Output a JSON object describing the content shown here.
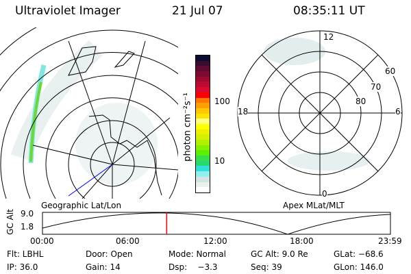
{
  "header": {
    "instrument": "Ultraviolet Imager",
    "date": "21 Jul 07",
    "time": "08:35:11 UT"
  },
  "left_map": {
    "label": "Geographic Lat/Lon"
  },
  "colorbar": {
    "unit_label": "photon cm⁻²s⁻¹",
    "tick_labels": [
      "100",
      "10"
    ],
    "colors": [
      "#0c0c32",
      "#3a0c30",
      "#5e0a32",
      "#7e0a32",
      "#9c0a32",
      "#be0a32",
      "#dc0a30",
      "#ff0000",
      "#ff7800",
      "#ffa000",
      "#ffc800",
      "#ffe400",
      "#ffff80",
      "#ffff00",
      "#eef000",
      "#d4f000",
      "#b0f000",
      "#84f000",
      "#5cf000",
      "#34e050",
      "#28d870",
      "#30e0d8",
      "#90f0f0",
      "#d4e4e4",
      "#e8f2ea",
      "#ffffff"
    ]
  },
  "right_polar": {
    "label": "Apex MLat/MLT",
    "mlt_labels": {
      "top": "12",
      "bottom": "0",
      "left": "18",
      "right": "6"
    },
    "lat_labels": [
      "60",
      "70",
      "80"
    ]
  },
  "time_plot": {
    "ylabel": "GC Alt",
    "yticks": [
      "9.0",
      "1.8"
    ],
    "xticks": [
      "00:00",
      "06:00",
      "12:00",
      "18:00",
      "23:59"
    ],
    "current_time_fraction": 0.357,
    "marker_color": "#ff0000"
  },
  "status": {
    "row1": [
      "Flt: LBHL",
      "Door: Open",
      "Mode: Normal",
      "GC Alt: 9.0 Re",
      "GLat: −68.6"
    ],
    "row2": [
      "IP: 36.0",
      "Gain: 14",
      "Dsp:    −3.3",
      "Seq: 39",
      "GLon: 146.0"
    ]
  }
}
